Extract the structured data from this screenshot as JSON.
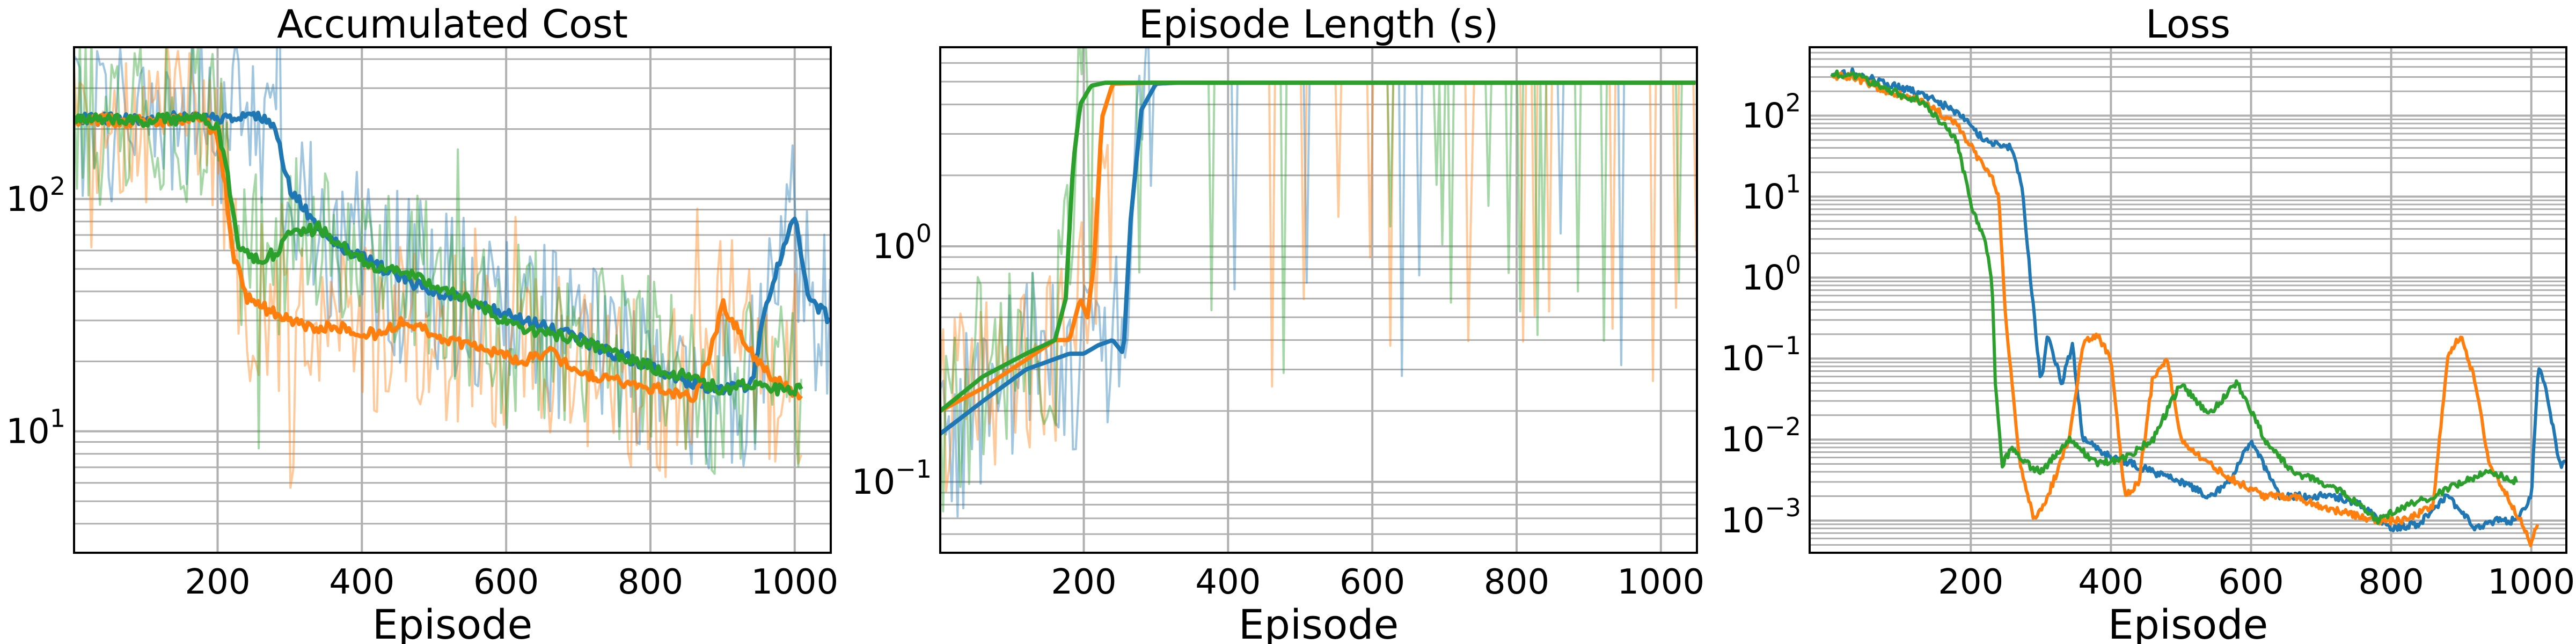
{
  "chart_data": [
    {
      "type": "line",
      "title": "Accumulated Cost",
      "xlabel": "Episode",
      "ylabel": "",
      "yscale": "log",
      "xlim": [
        1,
        1050
      ],
      "ylim": [
        3,
        450
      ],
      "xticks": [
        200,
        400,
        600,
        800,
        1000
      ],
      "yticks": [
        10,
        100
      ],
      "ytick_labels": [
        {
          "base": "10",
          "exp": "1"
        },
        {
          "base": "10",
          "exp": "2"
        }
      ],
      "grid": true,
      "legend": "none",
      "series": [
        {
          "color": "#1f77b4",
          "raw_band": true,
          "x": [
            1,
            100,
            180,
            200,
            230,
            260,
            280,
            300,
            340,
            380,
            420,
            460,
            500,
            540,
            580,
            620,
            660,
            700,
            740,
            780,
            820,
            860,
            900,
            940,
            960,
            980,
            1000,
            1020,
            1050
          ],
          "y": [
            220,
            222,
            225,
            225,
            230,
            230,
            200,
            110,
            75,
            60,
            52,
            45,
            40,
            38,
            34,
            30,
            28,
            25,
            22,
            20,
            18,
            16,
            15,
            16,
            35,
            55,
            85,
            38,
            30
          ]
        },
        {
          "color": "#ff7f0e",
          "raw_band": true,
          "x": [
            1,
            100,
            180,
            200,
            210,
            220,
            240,
            270,
            300,
            340,
            380,
            420,
            460,
            500,
            540,
            580,
            620,
            660,
            700,
            740,
            780,
            820,
            860,
            880,
            900,
            920,
            940,
            960,
            980,
            1010
          ],
          "y": [
            220,
            215,
            225,
            180,
            120,
            60,
            38,
            33,
            30,
            28,
            28,
            26,
            30,
            26,
            24,
            22,
            20,
            22,
            18,
            17,
            16,
            15,
            14,
            20,
            35,
            28,
            22,
            18,
            16,
            14
          ]
        },
        {
          "color": "#2ca02c",
          "raw_band": true,
          "x": [
            1,
            100,
            180,
            200,
            215,
            230,
            250,
            280,
            300,
            340,
            380,
            420,
            460,
            500,
            540,
            580,
            620,
            660,
            700,
            740,
            780,
            820,
            860,
            900,
            940,
            980,
            1000,
            1010
          ],
          "y": [
            220,
            218,
            225,
            200,
            120,
            60,
            55,
            58,
            70,
            75,
            60,
            50,
            48,
            42,
            38,
            32,
            28,
            26,
            25,
            22,
            20,
            18,
            17,
            15,
            16,
            15,
            15,
            16
          ]
        }
      ]
    },
    {
      "type": "line",
      "title": "Episode Length (s)",
      "xlabel": "Episode",
      "ylabel": "",
      "yscale": "log",
      "xlim": [
        1,
        1050
      ],
      "ylim": [
        0.05,
        7
      ],
      "xticks": [
        200,
        400,
        600,
        800,
        1000
      ],
      "yticks": [
        0.1,
        1
      ],
      "ytick_labels": [
        {
          "base": "10",
          "exp": "−1"
        },
        {
          "base": "10",
          "exp": "0"
        }
      ],
      "grid": true,
      "legend": "none",
      "series": [
        {
          "color": "#1f77b4",
          "raw_band": true,
          "x": [
            1,
            60,
            120,
            180,
            200,
            220,
            240,
            255,
            265,
            280,
            300,
            330,
            1050
          ],
          "y": [
            0.16,
            0.22,
            0.3,
            0.35,
            0.35,
            0.38,
            0.4,
            0.35,
            1.3,
            3.8,
            4.9,
            4.95,
            4.95
          ]
        },
        {
          "color": "#ff7f0e",
          "raw_band": true,
          "x": [
            1,
            60,
            120,
            160,
            180,
            195,
            205,
            215,
            225,
            240,
            300,
            1050
          ],
          "y": [
            0.2,
            0.25,
            0.33,
            0.4,
            0.4,
            0.6,
            0.5,
            0.9,
            3.5,
            4.9,
            4.95,
            4.95
          ]
        },
        {
          "color": "#2ca02c",
          "raw_band": true,
          "x": [
            1,
            60,
            120,
            160,
            175,
            185,
            195,
            210,
            230,
            300,
            1050
          ],
          "y": [
            0.2,
            0.28,
            0.35,
            0.4,
            0.6,
            2.2,
            4.0,
            4.8,
            4.95,
            4.95,
            4.95
          ]
        }
      ]
    },
    {
      "type": "line",
      "title": "Loss",
      "xlabel": "Episode",
      "ylabel": "",
      "yscale": "log",
      "xlim": [
        -30,
        1050
      ],
      "ylim": [
        0.0004,
        700
      ],
      "xticks": [
        200,
        400,
        600,
        800,
        1000
      ],
      "yticks": [
        0.001,
        0.01,
        0.1,
        1,
        10,
        100
      ],
      "ytick_labels": [
        {
          "base": "10",
          "exp": "−3"
        },
        {
          "base": "10",
          "exp": "−2"
        },
        {
          "base": "10",
          "exp": "−1"
        },
        {
          "base": "10",
          "exp": "0"
        },
        {
          "base": "10",
          "exp": "1"
        },
        {
          "base": "10",
          "exp": "2"
        }
      ],
      "grid": true,
      "legend": "none",
      "series": [
        {
          "color": "#1f77b4",
          "raw_band": false,
          "x": [
            1,
            30,
            80,
            130,
            180,
            220,
            260,
            275,
            285,
            300,
            310,
            330,
            345,
            360,
            380,
            400,
            430,
            460,
            500,
            540,
            570,
            600,
            640,
            680,
            720,
            760,
            800,
            840,
            880,
            920,
            950,
            980,
            1000,
            1010,
            1020,
            1040,
            1050
          ],
          "y": [
            300,
            350,
            250,
            190,
            110,
            50,
            40,
            10,
            1,
            0.05,
            0.2,
            0.05,
            0.15,
            0.01,
            0.008,
            0.006,
            0.005,
            0.004,
            0.003,
            0.002,
            0.003,
            0.01,
            0.002,
            0.002,
            0.002,
            0.0015,
            0.0008,
            0.0009,
            0.002,
            0.0008,
            0.001,
            0.001,
            0.002,
            0.08,
            0.05,
            0.005,
            0.005
          ]
        },
        {
          "color": "#ff7f0e",
          "raw_band": false,
          "x": [
            1,
            30,
            80,
            130,
            180,
            210,
            230,
            240,
            250,
            270,
            290,
            310,
            340,
            360,
            380,
            400,
            420,
            440,
            460,
            480,
            500,
            540,
            580,
            620,
            660,
            700,
            740,
            780,
            820,
            860,
            880,
            900,
            920,
            940,
            980,
            1000,
            1010
          ],
          "y": [
            300,
            310,
            200,
            150,
            80,
            30,
            18,
            10,
            0.3,
            0.005,
            0.001,
            0.002,
            0.01,
            0.15,
            0.2,
            0.1,
            0.002,
            0.003,
            0.06,
            0.1,
            0.01,
            0.005,
            0.003,
            0.002,
            0.002,
            0.0015,
            0.0012,
            0.001,
            0.001,
            0.0015,
            0.1,
            0.2,
            0.05,
            0.005,
            0.0012,
            0.0005,
            0.001
          ]
        },
        {
          "color": "#2ca02c",
          "raw_band": false,
          "x": [
            1,
            30,
            80,
            130,
            180,
            200,
            220,
            230,
            235,
            245,
            260,
            280,
            300,
            340,
            380,
            420,
            460,
            500,
            540,
            580,
            620,
            660,
            700,
            740,
            780,
            820,
            860,
            900,
            940,
            980
          ],
          "y": [
            320,
            330,
            210,
            150,
            50,
            8,
            3,
            1,
            0.05,
            0.005,
            0.008,
            0.005,
            0.004,
            0.01,
            0.005,
            0.006,
            0.01,
            0.05,
            0.02,
            0.05,
            0.01,
            0.004,
            0.003,
            0.002,
            0.001,
            0.0015,
            0.002,
            0.003,
            0.004,
            0.003
          ]
        }
      ]
    }
  ]
}
